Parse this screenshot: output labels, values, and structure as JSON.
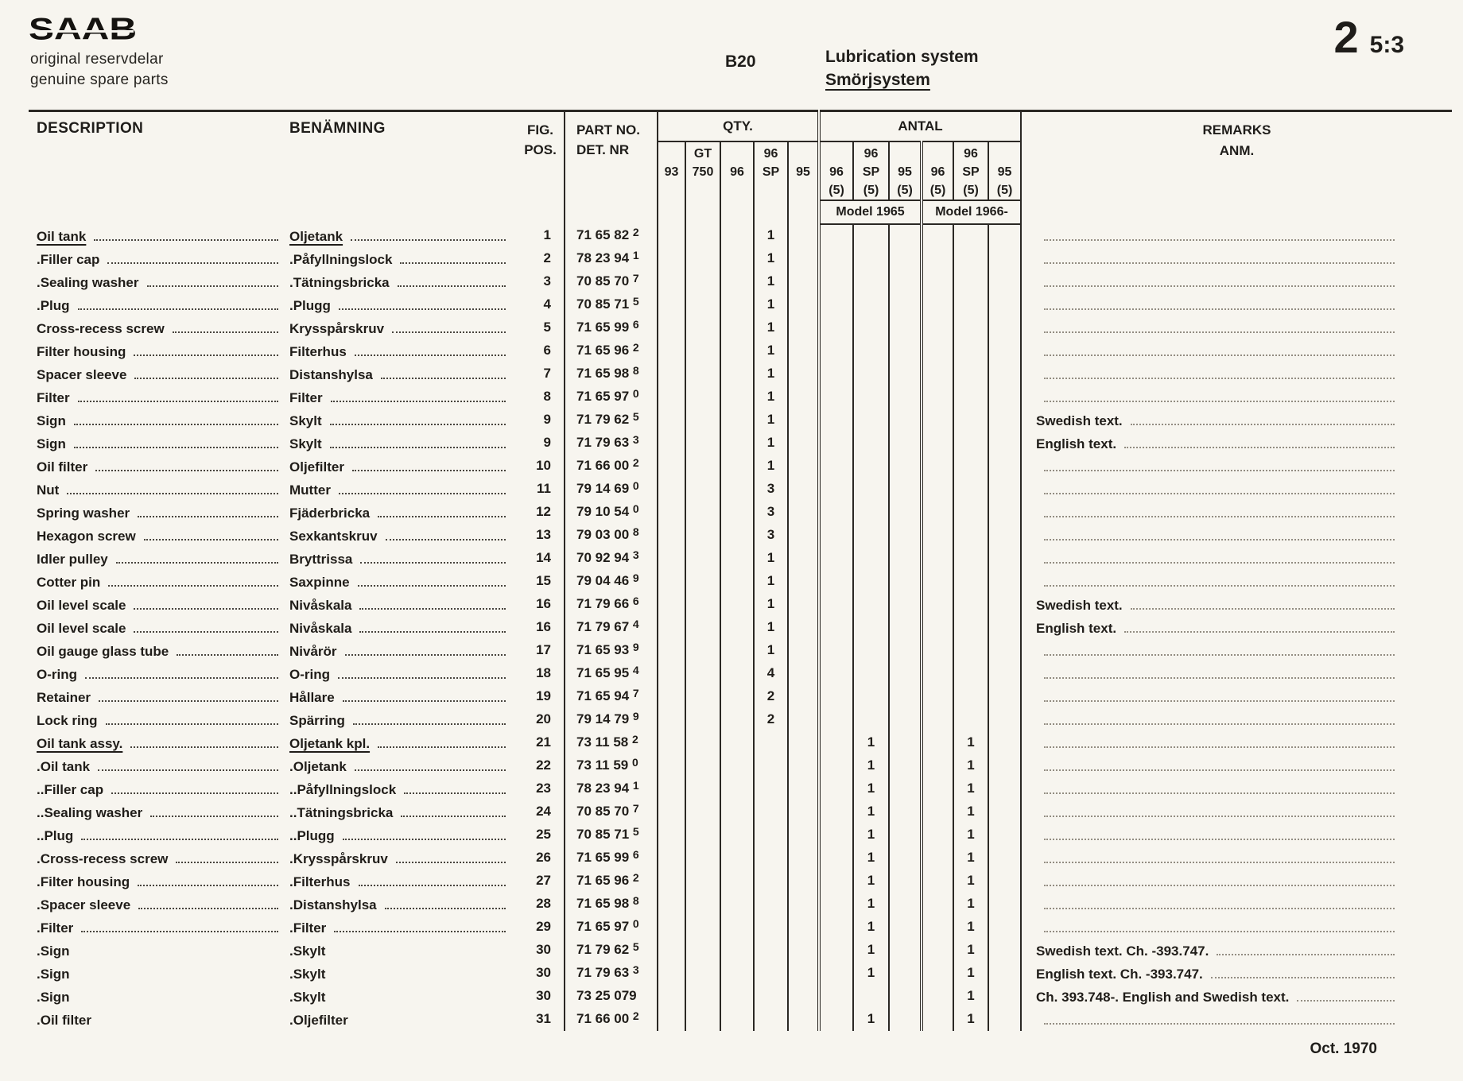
{
  "page": {
    "logo": "SAAB",
    "brand_line1": "original reservdelar",
    "brand_line2": "genuine spare parts",
    "engine_code": "B20",
    "system_title_en": "Lubrication system",
    "system_title_sv": "Smörjsystem",
    "section_no": "2",
    "page_no": "5:3",
    "footer_date": "Oct. 1970"
  },
  "table": {
    "headers": {
      "description": "DESCRIPTION",
      "benamning": "BENÄMNING",
      "fig": "FIG.",
      "pos": "POS.",
      "part_no": "PART NO.",
      "det_nr": "DET. NR",
      "qty": "QTY.",
      "antal": "ANTAL",
      "remarks": "REMARKS",
      "anm": "ANM."
    },
    "qty_columns": [
      {
        "l1": "",
        "l2": "93",
        "l3": ""
      },
      {
        "l1": "GT",
        "l2": "750",
        "l3": ""
      },
      {
        "l1": "",
        "l2": "96",
        "l3": ""
      },
      {
        "l1": "96",
        "l2": "SP",
        "l3": ""
      },
      {
        "l1": "",
        "l2": "95",
        "l3": ""
      },
      {
        "l1": "",
        "l2": "96",
        "l3": "(5)"
      },
      {
        "l1": "96",
        "l2": "SP",
        "l3": "(5)"
      },
      {
        "l1": "",
        "l2": "95",
        "l3": "(5)"
      },
      {
        "l1": "",
        "l2": "96",
        "l3": "(5)"
      },
      {
        "l1": "96",
        "l2": "SP",
        "l3": "(5)"
      },
      {
        "l1": "",
        "l2": "95",
        "l3": "(5)"
      }
    ],
    "model_groups": [
      {
        "label": "Model 1965"
      },
      {
        "label": "Model 1966-"
      }
    ],
    "rows": [
      {
        "description": "Oil tank",
        "benamning": "Oljetank",
        "pos": "1",
        "part_no": "71 65 82 2",
        "qty": [
          "",
          "",
          "",
          "1",
          "",
          "",
          "",
          "",
          "",
          "",
          ""
        ],
        "remarks": "",
        "underline": true,
        "leader": true
      },
      {
        "description": ".Filler cap",
        "benamning": ".Påfyllningslock",
        "pos": "2",
        "part_no": "78 23 94 1",
        "qty": [
          "",
          "",
          "",
          "1",
          "",
          "",
          "",
          "",
          "",
          "",
          ""
        ],
        "remarks": "",
        "underline": false,
        "leader": true
      },
      {
        "description": ".Sealing washer",
        "benamning": ".Tätningsbricka",
        "pos": "3",
        "part_no": "70 85 70 7",
        "qty": [
          "",
          "",
          "",
          "1",
          "",
          "",
          "",
          "",
          "",
          "",
          ""
        ],
        "remarks": "",
        "underline": false,
        "leader": true
      },
      {
        "description": ".Plug",
        "benamning": ".Plugg",
        "pos": "4",
        "part_no": "70 85 71 5",
        "qty": [
          "",
          "",
          "",
          "1",
          "",
          "",
          "",
          "",
          "",
          "",
          ""
        ],
        "remarks": "",
        "underline": false,
        "leader": true
      },
      {
        "description": "Cross-recess screw",
        "benamning": "Krysspårskruv",
        "pos": "5",
        "part_no": "71 65 99 6",
        "qty": [
          "",
          "",
          "",
          "1",
          "",
          "",
          "",
          "",
          "",
          "",
          ""
        ],
        "remarks": "",
        "underline": false,
        "leader": true
      },
      {
        "description": "Filter housing",
        "benamning": "Filterhus",
        "pos": "6",
        "part_no": "71 65 96 2",
        "qty": [
          "",
          "",
          "",
          "1",
          "",
          "",
          "",
          "",
          "",
          "",
          ""
        ],
        "remarks": "",
        "underline": false,
        "leader": true
      },
      {
        "description": "Spacer sleeve",
        "benamning": "Distanshylsa",
        "pos": "7",
        "part_no": "71 65 98 8",
        "qty": [
          "",
          "",
          "",
          "1",
          "",
          "",
          "",
          "",
          "",
          "",
          ""
        ],
        "remarks": "",
        "underline": false,
        "leader": true
      },
      {
        "description": "Filter",
        "benamning": "Filter",
        "pos": "8",
        "part_no": "71 65 97 0",
        "qty": [
          "",
          "",
          "",
          "1",
          "",
          "",
          "",
          "",
          "",
          "",
          ""
        ],
        "remarks": "",
        "underline": false,
        "leader": true
      },
      {
        "description": "Sign",
        "benamning": "Skylt",
        "pos": "9",
        "part_no": "71 79 62 5",
        "qty": [
          "",
          "",
          "",
          "1",
          "",
          "",
          "",
          "",
          "",
          "",
          ""
        ],
        "remarks": "Swedish text.",
        "underline": false,
        "leader": true
      },
      {
        "description": "Sign",
        "benamning": "Skylt",
        "pos": "9",
        "part_no": "71 79 63 3",
        "qty": [
          "",
          "",
          "",
          "1",
          "",
          "",
          "",
          "",
          "",
          "",
          ""
        ],
        "remarks": "English text.",
        "underline": false,
        "leader": true
      },
      {
        "description": "Oil filter",
        "benamning": "Oljefilter",
        "pos": "10",
        "part_no": "71 66 00 2",
        "qty": [
          "",
          "",
          "",
          "1",
          "",
          "",
          "",
          "",
          "",
          "",
          ""
        ],
        "remarks": "",
        "underline": false,
        "leader": true
      },
      {
        "description": "Nut",
        "benamning": "Mutter",
        "pos": "11",
        "part_no": "79 14 69 0",
        "qty": [
          "",
          "",
          "",
          "3",
          "",
          "",
          "",
          "",
          "",
          "",
          ""
        ],
        "remarks": "",
        "underline": false,
        "leader": true
      },
      {
        "description": "Spring washer",
        "benamning": "Fjäderbricka",
        "pos": "12",
        "part_no": "79 10 54 0",
        "qty": [
          "",
          "",
          "",
          "3",
          "",
          "",
          "",
          "",
          "",
          "",
          ""
        ],
        "remarks": "",
        "underline": false,
        "leader": true
      },
      {
        "description": "Hexagon screw",
        "benamning": "Sexkantskruv",
        "pos": "13",
        "part_no": "79 03 00 8",
        "qty": [
          "",
          "",
          "",
          "3",
          "",
          "",
          "",
          "",
          "",
          "",
          ""
        ],
        "remarks": "",
        "underline": false,
        "leader": true
      },
      {
        "description": "Idler pulley",
        "benamning": "Bryttrissa",
        "pos": "14",
        "part_no": "70 92 94 3",
        "qty": [
          "",
          "",
          "",
          "1",
          "",
          "",
          "",
          "",
          "",
          "",
          ""
        ],
        "remarks": "",
        "underline": false,
        "leader": true
      },
      {
        "description": "Cotter pin",
        "benamning": "Saxpinne",
        "pos": "15",
        "part_no": "79 04 46 9",
        "qty": [
          "",
          "",
          "",
          "1",
          "",
          "",
          "",
          "",
          "",
          "",
          ""
        ],
        "remarks": "",
        "underline": false,
        "leader": true
      },
      {
        "description": "Oil level scale",
        "benamning": "Nivåskala",
        "pos": "16",
        "part_no": "71 79 66 6",
        "qty": [
          "",
          "",
          "",
          "1",
          "",
          "",
          "",
          "",
          "",
          "",
          ""
        ],
        "remarks": "Swedish text.",
        "underline": false,
        "leader": true
      },
      {
        "description": "Oil level scale",
        "benamning": "Nivåskala",
        "pos": "16",
        "part_no": "71 79 67 4",
        "qty": [
          "",
          "",
          "",
          "1",
          "",
          "",
          "",
          "",
          "",
          "",
          ""
        ],
        "remarks": "English text.",
        "underline": false,
        "leader": true
      },
      {
        "description": "Oil gauge glass tube",
        "benamning": "Nivårör",
        "pos": "17",
        "part_no": "71 65 93 9",
        "qty": [
          "",
          "",
          "",
          "1",
          "",
          "",
          "",
          "",
          "",
          "",
          ""
        ],
        "remarks": "",
        "underline": false,
        "leader": true
      },
      {
        "description": "O-ring",
        "benamning": "O-ring",
        "pos": "18",
        "part_no": "71 65 95 4",
        "qty": [
          "",
          "",
          "",
          "4",
          "",
          "",
          "",
          "",
          "",
          "",
          ""
        ],
        "remarks": "",
        "underline": false,
        "leader": true
      },
      {
        "description": "Retainer",
        "benamning": "Hållare",
        "pos": "19",
        "part_no": "71 65 94 7",
        "qty": [
          "",
          "",
          "",
          "2",
          "",
          "",
          "",
          "",
          "",
          "",
          ""
        ],
        "remarks": "",
        "underline": false,
        "leader": true
      },
      {
        "description": "Lock ring",
        "benamning": "Spärring",
        "pos": "20",
        "part_no": "79 14 79 9",
        "qty": [
          "",
          "",
          "",
          "2",
          "",
          "",
          "",
          "",
          "",
          "",
          ""
        ],
        "remarks": "",
        "underline": false,
        "leader": true
      },
      {
        "description": "Oil tank assy.",
        "benamning": "Oljetank kpl.",
        "pos": "21",
        "part_no": "73 11 58 2",
        "qty": [
          "",
          "",
          "",
          "",
          "",
          "",
          "1",
          "",
          "",
          "1",
          ""
        ],
        "remarks": "",
        "underline": true,
        "leader": true
      },
      {
        "description": ".Oil tank",
        "benamning": ".Oljetank",
        "pos": "22",
        "part_no": "73 11 59 0",
        "qty": [
          "",
          "",
          "",
          "",
          "",
          "",
          "1",
          "",
          "",
          "1",
          ""
        ],
        "remarks": "",
        "underline": false,
        "leader": true
      },
      {
        "description": "..Filler cap",
        "benamning": "..Påfyllningslock",
        "pos": "23",
        "part_no": "78 23 94 1",
        "qty": [
          "",
          "",
          "",
          "",
          "",
          "",
          "1",
          "",
          "",
          "1",
          ""
        ],
        "remarks": "",
        "underline": false,
        "leader": true
      },
      {
        "description": "..Sealing washer",
        "benamning": "..Tätningsbricka",
        "pos": "24",
        "part_no": "70 85 70 7",
        "qty": [
          "",
          "",
          "",
          "",
          "",
          "",
          "1",
          "",
          "",
          "1",
          ""
        ],
        "remarks": "",
        "underline": false,
        "leader": true
      },
      {
        "description": "..Plug",
        "benamning": "..Plugg",
        "pos": "25",
        "part_no": "70 85 71 5",
        "qty": [
          "",
          "",
          "",
          "",
          "",
          "",
          "1",
          "",
          "",
          "1",
          ""
        ],
        "remarks": "",
        "underline": false,
        "leader": true
      },
      {
        "description": ".Cross-recess screw",
        "benamning": ".Krysspårskruv",
        "pos": "26",
        "part_no": "71 65 99 6",
        "qty": [
          "",
          "",
          "",
          "",
          "",
          "",
          "1",
          "",
          "",
          "1",
          ""
        ],
        "remarks": "",
        "underline": false,
        "leader": true
      },
      {
        "description": ".Filter housing",
        "benamning": ".Filterhus",
        "pos": "27",
        "part_no": "71 65 96 2",
        "qty": [
          "",
          "",
          "",
          "",
          "",
          "",
          "1",
          "",
          "",
          "1",
          ""
        ],
        "remarks": "",
        "underline": false,
        "leader": true
      },
      {
        "description": ".Spacer sleeve",
        "benamning": ".Distanshylsa",
        "pos": "28",
        "part_no": "71 65 98 8",
        "qty": [
          "",
          "",
          "",
          "",
          "",
          "",
          "1",
          "",
          "",
          "1",
          ""
        ],
        "remarks": "",
        "underline": false,
        "leader": true
      },
      {
        "description": ".Filter",
        "benamning": ".Filter",
        "pos": "29",
        "part_no": "71 65 97 0",
        "qty": [
          "",
          "",
          "",
          "",
          "",
          "",
          "1",
          "",
          "",
          "1",
          ""
        ],
        "remarks": "",
        "underline": false,
        "leader": true
      },
      {
        "description": ".Sign",
        "benamning": ".Skylt",
        "pos": "30",
        "part_no": "71 79 62 5",
        "qty": [
          "",
          "",
          "",
          "",
          "",
          "",
          "1",
          "",
          "",
          "1",
          ""
        ],
        "remarks": "Swedish text.  Ch. -393.747.",
        "underline": false,
        "leader": false
      },
      {
        "description": ".Sign",
        "benamning": ".Skylt",
        "pos": "30",
        "part_no": "71 79 63 3",
        "qty": [
          "",
          "",
          "",
          "",
          "",
          "",
          "1",
          "",
          "",
          "1",
          ""
        ],
        "remarks": "English text.  Ch. -393.747.",
        "underline": false,
        "leader": false
      },
      {
        "description": ".Sign",
        "benamning": ".Skylt",
        "pos": "30",
        "part_no": "73 25 079",
        "qty": [
          "",
          "",
          "",
          "",
          "",
          "",
          "",
          "",
          "",
          "1",
          ""
        ],
        "remarks": "Ch. 393.748-.  English and Swedish text.",
        "underline": false,
        "leader": false
      },
      {
        "description": ".Oil filter",
        "benamning": ".Oljefilter",
        "pos": "31",
        "part_no": "71 66 00 2",
        "qty": [
          "",
          "",
          "",
          "",
          "",
          "",
          "1",
          "",
          "",
          "1",
          ""
        ],
        "remarks": "",
        "underline": false,
        "leader": false
      }
    ]
  }
}
